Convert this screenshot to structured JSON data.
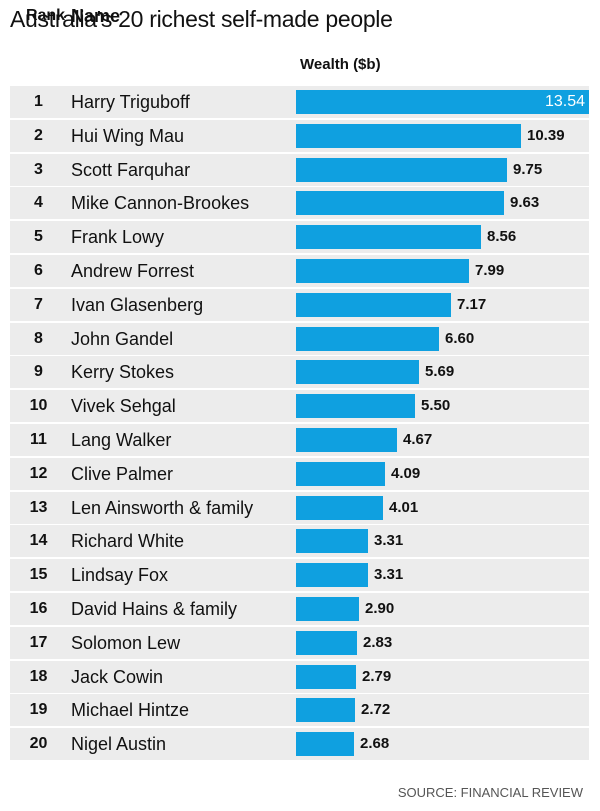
{
  "title": "Australia's 20 richest self-made people",
  "headers": {
    "rank": "Rank",
    "name": "Name",
    "wealth": "Wealth ($b)"
  },
  "source": "SOURCE: FINANCIAL REVIEW",
  "colors": {
    "bar": "#0fa0e0",
    "row_bg": "#ececec"
  },
  "chart_data": {
    "type": "bar",
    "orientation": "horizontal",
    "title": "Australia's 20 richest self-made people",
    "ylabel": "Wealth ($b)",
    "xlim": [
      0,
      13.54
    ],
    "rows": [
      {
        "rank": "1",
        "name": "Harry Triguboff",
        "value": 13.54,
        "label": "13.54"
      },
      {
        "rank": "2",
        "name": "Hui Wing Mau",
        "value": 10.39,
        "label": "10.39"
      },
      {
        "rank": "3",
        "name": "Scott Farquhar",
        "value": 9.75,
        "label": "9.75"
      },
      {
        "rank": "4",
        "name": "Mike Cannon-Brookes",
        "value": 9.63,
        "label": "9.63"
      },
      {
        "rank": "5",
        "name": "Frank Lowy",
        "value": 8.56,
        "label": "8.56"
      },
      {
        "rank": "6",
        "name": "Andrew Forrest",
        "value": 7.99,
        "label": "7.99"
      },
      {
        "rank": "7",
        "name": "Ivan Glasenberg",
        "value": 7.17,
        "label": "7.17"
      },
      {
        "rank": "8",
        "name": "John Gandel",
        "value": 6.6,
        "label": "6.60"
      },
      {
        "rank": "9",
        "name": "Kerry Stokes",
        "value": 5.69,
        "label": "5.69"
      },
      {
        "rank": "10",
        "name": "Vivek Sehgal",
        "value": 5.5,
        "label": "5.50"
      },
      {
        "rank": "11",
        "name": "Lang Walker",
        "value": 4.67,
        "label": "4.67"
      },
      {
        "rank": "12",
        "name": "Clive Palmer",
        "value": 4.09,
        "label": "4.09"
      },
      {
        "rank": "13",
        "name": "Len Ainsworth & family",
        "value": 4.01,
        "label": "4.01"
      },
      {
        "rank": "14",
        "name": "Richard White",
        "value": 3.31,
        "label": "3.31"
      },
      {
        "rank": "15",
        "name": "Lindsay Fox",
        "value": 3.31,
        "label": "3.31"
      },
      {
        "rank": "16",
        "name": "David Hains & family",
        "value": 2.9,
        "label": "2.90"
      },
      {
        "rank": "17",
        "name": "Solomon Lew",
        "value": 2.83,
        "label": "2.83"
      },
      {
        "rank": "18",
        "name": "Jack Cowin",
        "value": 2.79,
        "label": "2.79"
      },
      {
        "rank": "19",
        "name": "Michael Hintze",
        "value": 2.72,
        "label": "2.72"
      },
      {
        "rank": "20",
        "name": "Nigel Austin",
        "value": 2.68,
        "label": "2.68"
      }
    ]
  }
}
